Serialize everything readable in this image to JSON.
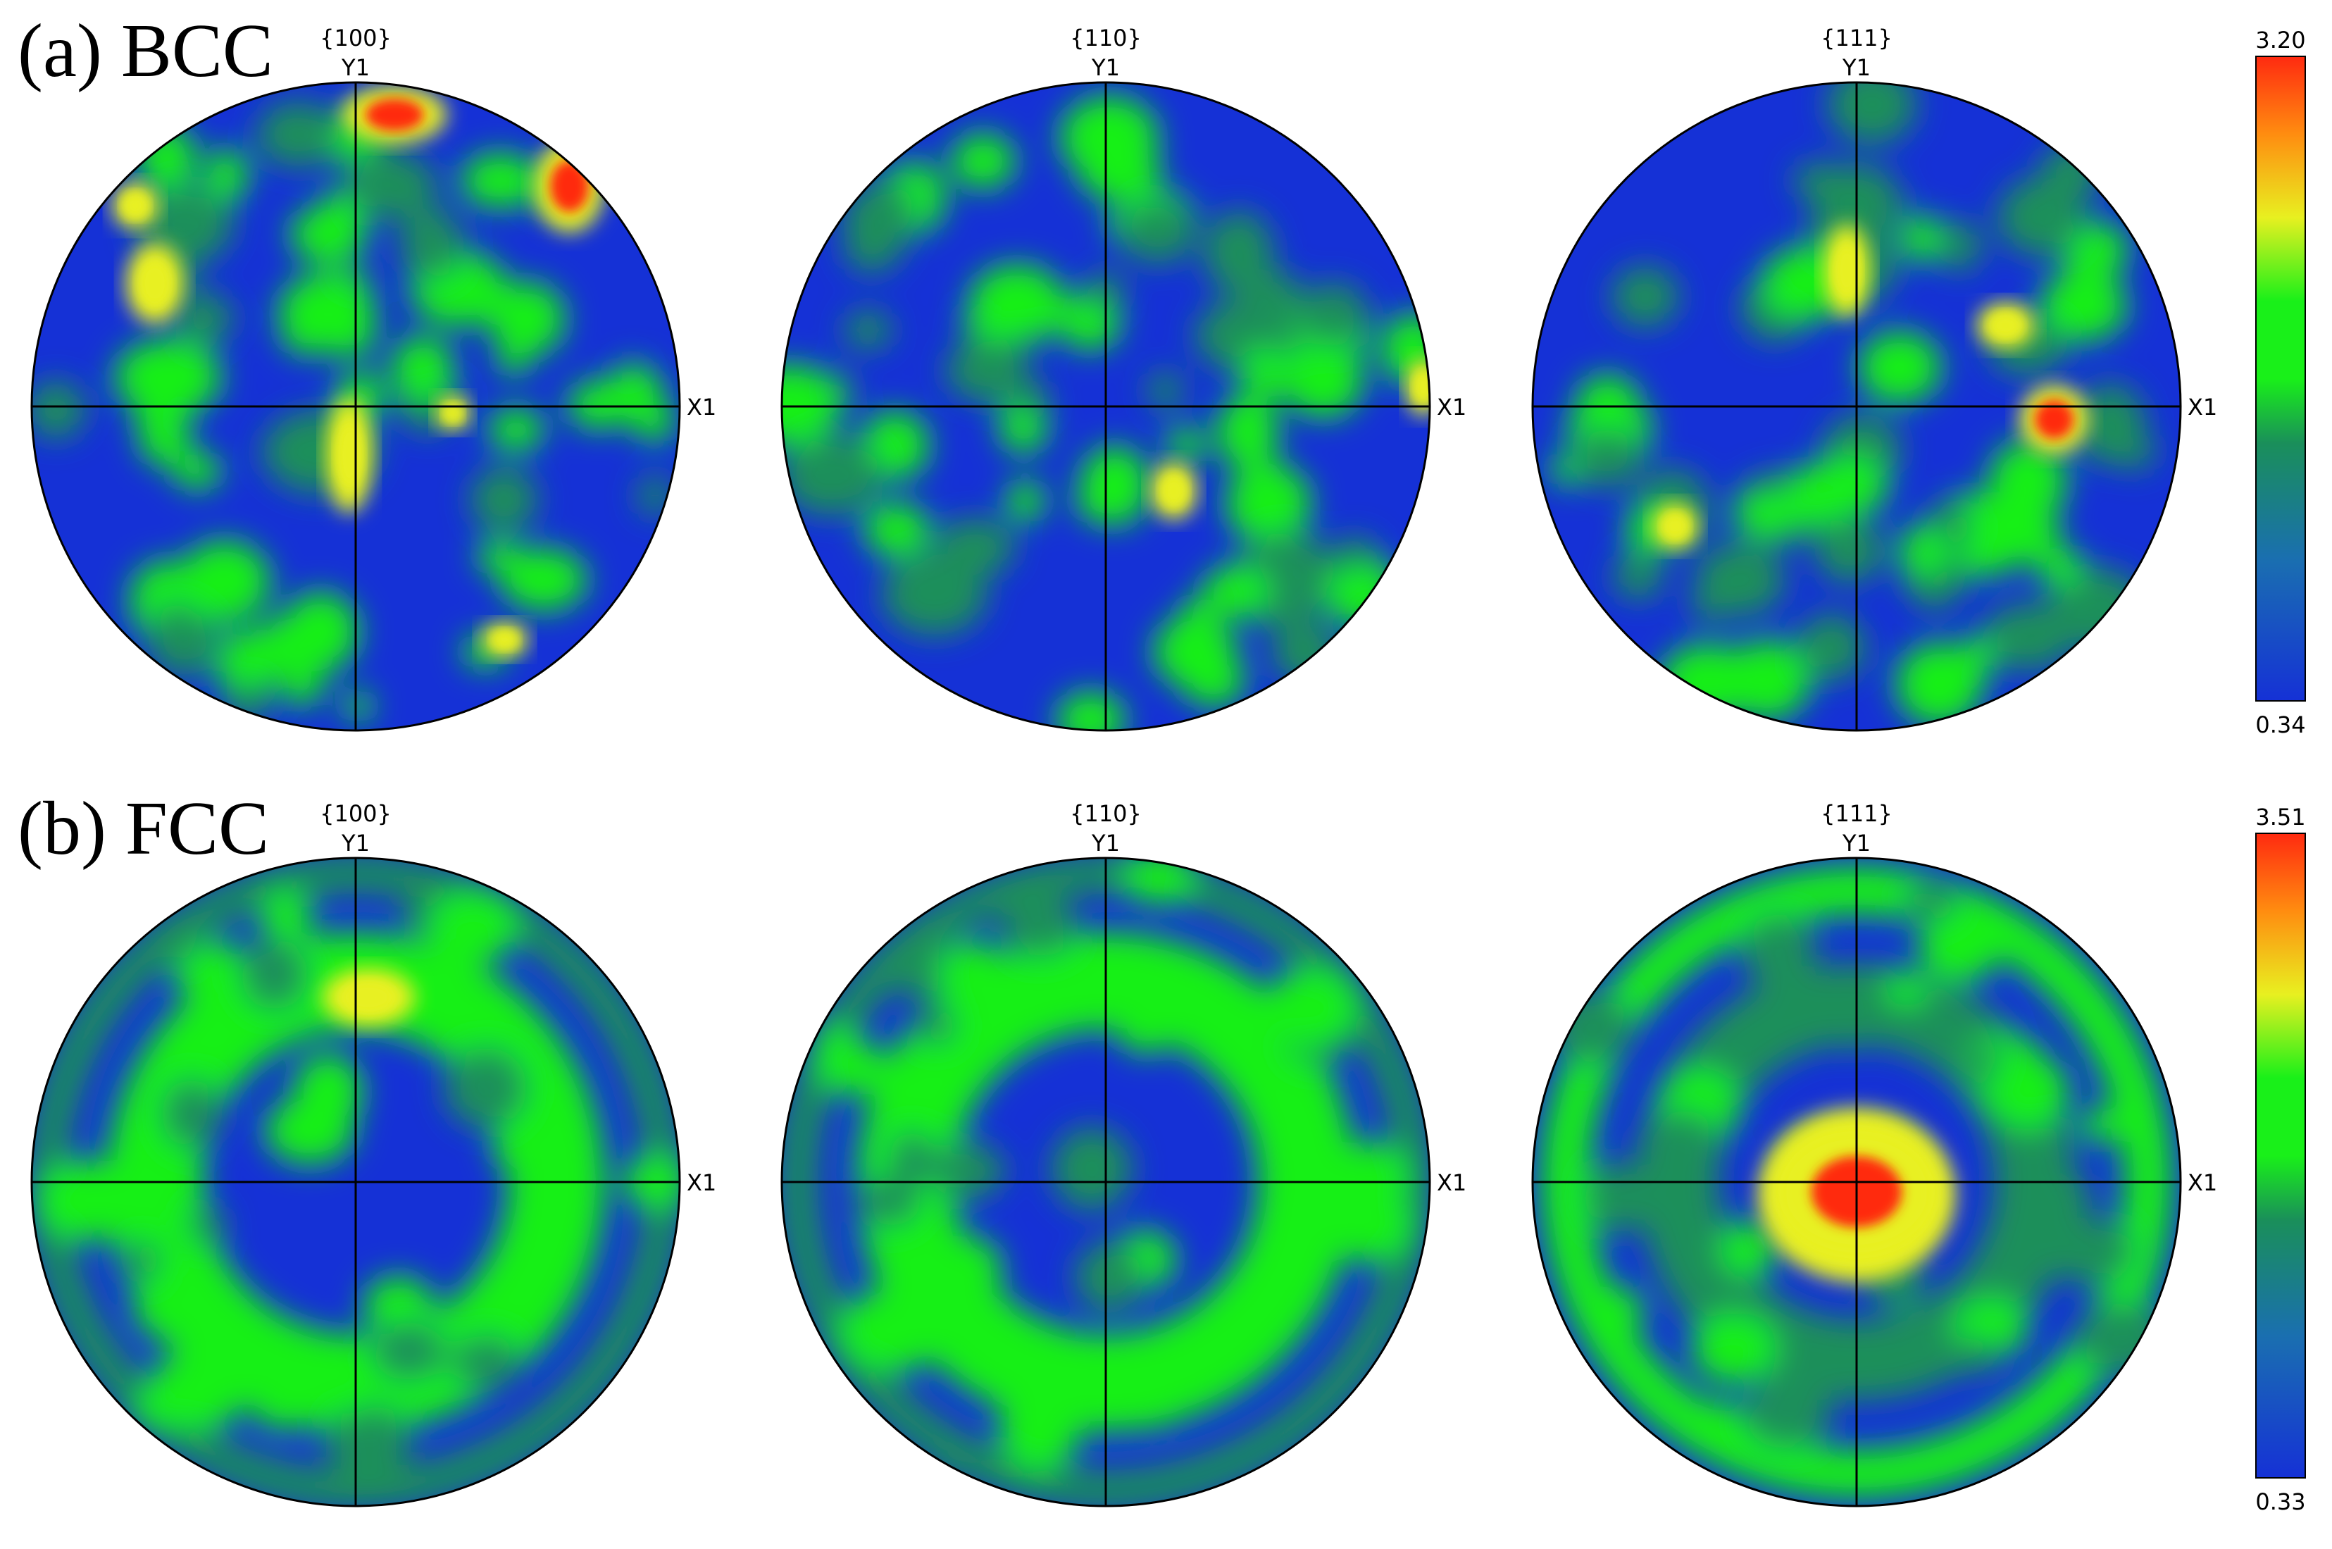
{
  "rows": [
    {
      "title": "(a) BCC",
      "scale": {
        "max_label": "3.20",
        "min_label": "0.34"
      },
      "poles": [
        {
          "label": "{100}",
          "y_axis": "Y1",
          "x_axis": "X1"
        },
        {
          "label": "{110}",
          "y_axis": "Y1",
          "x_axis": "X1"
        },
        {
          "label": "{111}",
          "y_axis": "Y1",
          "x_axis": "X1"
        }
      ]
    },
    {
      "title": "(b) FCC",
      "scale": {
        "max_label": "3.51",
        "min_label": "0.33"
      },
      "poles": [
        {
          "label": "{100}",
          "y_axis": "Y1",
          "x_axis": "X1"
        },
        {
          "label": "{110}",
          "y_axis": "Y1",
          "x_axis": "X1"
        },
        {
          "label": "{111}",
          "y_axis": "Y1",
          "x_axis": "X1"
        }
      ]
    }
  ],
  "colors": {
    "low": "#1531d6",
    "mid_low": "#1a8f5a",
    "mid": "#19f019",
    "mid_high": "#e8f020",
    "high": "#ff2a10",
    "outline": "#000000"
  }
}
